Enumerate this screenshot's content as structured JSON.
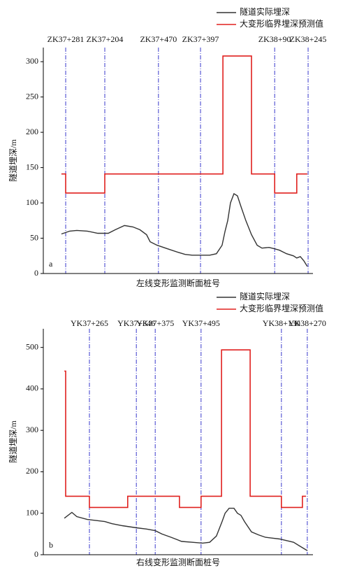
{
  "chart_data": [
    {
      "type": "line",
      "panel": "a",
      "y_label": "隧道埋深/m",
      "x_label": "左线变形监测断面桩号",
      "ylim": [
        0,
        320
      ],
      "yticks": [
        0,
        50,
        100,
        150,
        200,
        250,
        300
      ],
      "xlim": [
        0,
        100
      ],
      "stations": {
        "labels": [
          "ZK37+281",
          "ZK37+204",
          "ZK37+470",
          "ZK37+397",
          "ZK38+90",
          "ZK38+245"
        ],
        "x": [
          8.3,
          22.8,
          42.7,
          58.3,
          85.8,
          98.2
        ],
        "color": "#3a3acc"
      },
      "series": [
        {
          "name": "隧道实际埋深",
          "color": "#333333",
          "x": [
            6.7,
            9.8,
            12.4,
            16.3,
            20.2,
            24.1,
            26.7,
            30.1,
            33.2,
            35.8,
            38.3,
            39.6,
            42.2,
            46.1,
            50.0,
            52.6,
            55.2,
            57.8,
            61.7,
            64.2,
            66.3,
            67.4,
            68.4,
            69.4,
            70.7,
            72.0,
            73.3,
            75.1,
            77.2,
            79.3,
            81.1,
            83.7,
            85.8,
            87.6,
            90.2,
            92.8,
            94.0,
            95.3,
            96.6,
            97.9
          ],
          "values": [
            56,
            60,
            61,
            60,
            57,
            57,
            62,
            68,
            66,
            62,
            55,
            45,
            40,
            35,
            30,
            27,
            26,
            26,
            26,
            28,
            40,
            60,
            75,
            100,
            113,
            110,
            95,
            75,
            55,
            40,
            36,
            37,
            35,
            33,
            28,
            25,
            22,
            24,
            18,
            10
          ]
        },
        {
          "name": "大变形临界埋深预测值",
          "color": "#e0201e",
          "x": [
            6.7,
            8.3,
            8.3,
            22.8,
            22.8,
            66.6,
            66.6,
            77.2,
            77.2,
            85.8,
            85.8,
            94.0,
            94.0,
            97.9
          ],
          "values": [
            141,
            141,
            114,
            114,
            141,
            141,
            308,
            308,
            141,
            141,
            114,
            114,
            141,
            141
          ]
        }
      ]
    },
    {
      "type": "line",
      "panel": "b",
      "y_label": "隧道埋深/m",
      "x_label": "右线变形监测断面桩号",
      "ylim": [
        0,
        545
      ],
      "yticks": [
        0,
        100,
        200,
        300,
        400,
        500
      ],
      "xlim": [
        0,
        100
      ],
      "stations": {
        "labels": [
          "YK37+265",
          "YK37+346",
          "YK37+375",
          "YK37+495",
          "YK38+130",
          "YK38+270"
        ],
        "x": [
          17.1,
          34.5,
          41.5,
          58.5,
          88.3,
          97.9
        ],
        "color": "#3a3acc"
      },
      "series": [
        {
          "name": "隧道实际埋深",
          "color": "#333333",
          "x": [
            7.8,
            10.6,
            12.4,
            16.3,
            22.8,
            25.4,
            29.3,
            34.5,
            38.3,
            41.5,
            44.0,
            47.4,
            51.3,
            55.2,
            59.1,
            61.7,
            64.2,
            66.3,
            67.4,
            68.9,
            70.7,
            72.0,
            73.3,
            74.6,
            77.2,
            79.8,
            82.4,
            85.0,
            87.6,
            90.2,
            92.8,
            95.3,
            97.9
          ],
          "values": [
            88,
            102,
            92,
            85,
            80,
            75,
            70,
            65,
            62,
            58,
            50,
            42,
            32,
            30,
            28,
            30,
            45,
            80,
            100,
            112,
            112,
            100,
            95,
            80,
            55,
            48,
            42,
            40,
            38,
            34,
            30,
            20,
            10
          ]
        },
        {
          "name": "大变形临界埋深预测值",
          "color": "#e0201e",
          "x": [
            7.8,
            8.3,
            8.3,
            17.1,
            17.1,
            31.3,
            31.3,
            50.5,
            50.5,
            58.5,
            58.5,
            66.1,
            66.1,
            76.7,
            76.7,
            88.3,
            88.3,
            96.1,
            96.1,
            97.4
          ],
          "values": [
            443,
            443,
            141,
            141,
            114,
            114,
            141,
            141,
            114,
            114,
            141,
            141,
            494,
            494,
            141,
            141,
            114,
            114,
            141,
            141
          ]
        }
      ]
    }
  ]
}
